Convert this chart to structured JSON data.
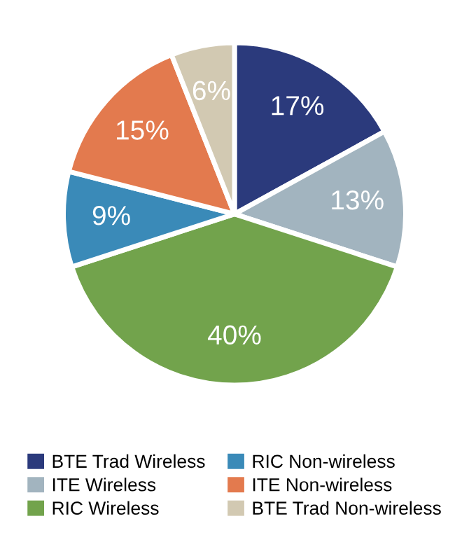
{
  "chart_data": {
    "type": "pie",
    "categories": [
      "BTE Trad Wireless",
      "ITE Wireless",
      "RIC Wireless",
      "RIC Non-wireless",
      "ITE Non-wireless",
      "BTE Trad Non-wireless"
    ],
    "values": [
      17,
      13,
      40,
      9,
      15,
      6
    ],
    "colors": [
      "#2b3a7c",
      "#a2b4bf",
      "#72a34c",
      "#3a8ab8",
      "#e37a4e",
      "#d2c9b2"
    ],
    "value_labels": [
      "17%",
      "13%",
      "40%",
      "9%",
      "15%",
      "6%"
    ],
    "legend": "bottom"
  }
}
